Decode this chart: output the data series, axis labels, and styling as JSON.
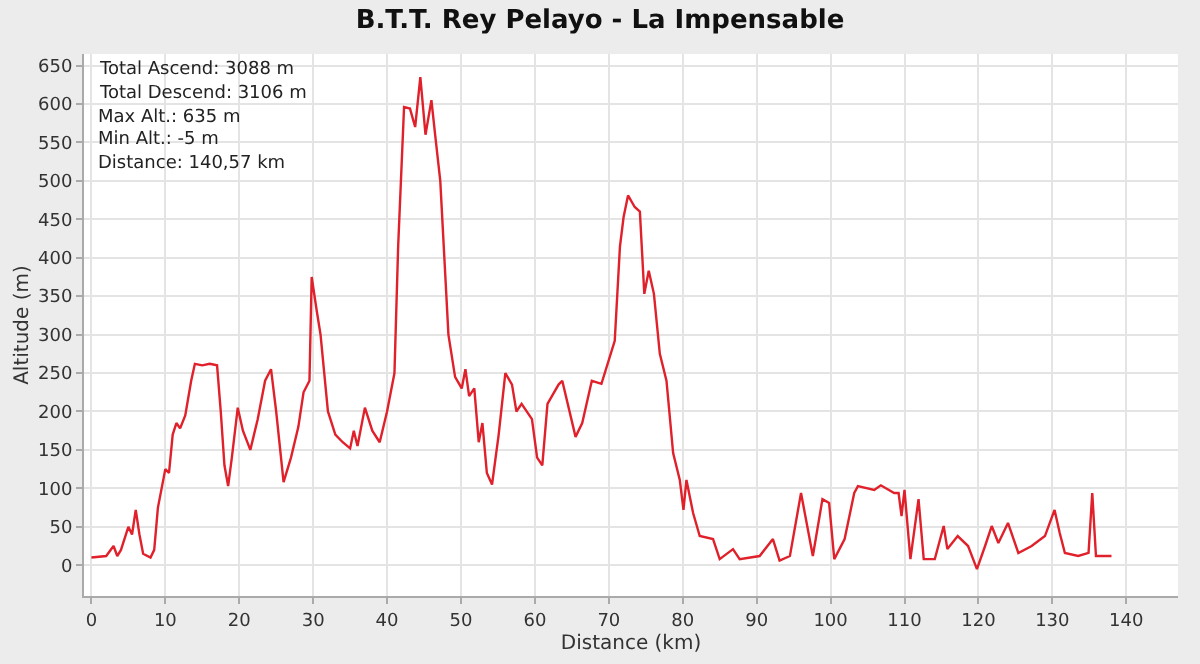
{
  "chart_data": {
    "type": "line",
    "title": "B.T.T. Rey Pelayo - La Impensable",
    "xlabel": "Distance (km)",
    "ylabel": "Altitude (m)",
    "annotations": [
      "Total Ascend: 3088 m",
      "Total Descend: 3106 m",
      "Max Alt.: 635 m",
      "Min Alt.: -5 m",
      "Distance: 140,57 km"
    ],
    "x": [
      0,
      2,
      3,
      3.5,
      4,
      5,
      5.5,
      6,
      6.5,
      7,
      8,
      8.5,
      9,
      9.5,
      10,
      10.5,
      11,
      11.5,
      12,
      12.7,
      13.5,
      14,
      15,
      16,
      17,
      17.5,
      18,
      18.5,
      19,
      19.8,
      20.5,
      21.5,
      22.5,
      23.5,
      24.3,
      25,
      26,
      27,
      28,
      28.7,
      29.5,
      29.8,
      30.5,
      31,
      31.5,
      32,
      33,
      34,
      35,
      35.5,
      36,
      37,
      38,
      39,
      40,
      41,
      41.5,
      42.3,
      43.1,
      43.8,
      44.5,
      45.2,
      46,
      46.5,
      47.2,
      48.3,
      49.2,
      50.1,
      50.6,
      51.1,
      51.8,
      52.4,
      52.9,
      53.5,
      54.2,
      55.1,
      56,
      56.9,
      57.5,
      58.2,
      59.6,
      60.3,
      61,
      61.7,
      63.2,
      63.7,
      65.5,
      66.4,
      67.7,
      69,
      70.8,
      71.5,
      72,
      72.6,
      73.5,
      74.2,
      74.8,
      75.4,
      76.1,
      76.9,
      77.8,
      78.7,
      79.6,
      80.1,
      80.5,
      81.4,
      82.3,
      84.1,
      85,
      86.8,
      87.7,
      90.4,
      92.2,
      93.1,
      94.5,
      96,
      97.6,
      98.9,
      99.8,
      100.5,
      101.9,
      103.2,
      103.7,
      105.9,
      106.8,
      108.6,
      109.2,
      109.6,
      110,
      110.8,
      111.9,
      112.6,
      114.1,
      115.3,
      115.8,
      117.2,
      118.6,
      119.8,
      120.9,
      121.8,
      122.7,
      124,
      125.4,
      127.2,
      129,
      130.3,
      131,
      131.7,
      133.5,
      134.9,
      135.4,
      135.9,
      138
    ],
    "values": [
      10,
      12,
      25,
      12,
      20,
      50,
      40,
      72,
      40,
      15,
      10,
      20,
      75,
      100,
      125,
      120,
      170,
      185,
      178,
      195,
      240,
      262,
      260,
      262,
      260,
      200,
      130,
      103,
      140,
      205,
      175,
      150,
      190,
      240,
      255,
      200,
      108,
      140,
      180,
      225,
      240,
      375,
      330,
      300,
      250,
      200,
      170,
      160,
      152,
      175,
      155,
      205,
      175,
      160,
      200,
      250,
      415,
      596,
      594,
      570,
      635,
      560,
      605,
      560,
      500,
      300,
      245,
      230,
      255,
      220,
      230,
      160,
      185,
      120,
      105,
      170,
      250,
      235,
      200,
      210,
      190,
      140,
      130,
      210,
      235,
      240,
      167,
      185,
      240,
      236,
      292,
      414,
      453,
      481,
      466,
      460,
      353,
      383,
      353,
      275,
      240,
      146,
      111,
      72,
      111,
      68,
      38,
      34,
      8,
      21,
      8,
      12,
      34,
      6,
      12,
      94,
      12,
      86,
      81,
      8,
      34,
      94,
      103,
      98,
      104,
      94,
      94,
      64,
      98,
      8,
      86,
      8,
      8,
      51,
      21,
      38,
      25,
      -5,
      25,
      51,
      29,
      55,
      16,
      25,
      38,
      72,
      42,
      16,
      12,
      16,
      94,
      12,
      12
    ],
    "color": "#e0202a",
    "xlim": [
      -1,
      147
    ],
    "ylim": [
      -40,
      665
    ],
    "xticks": [
      0,
      10,
      20,
      30,
      40,
      50,
      60,
      70,
      80,
      90,
      100,
      110,
      120,
      130,
      140
    ],
    "yticks": [
      0,
      50,
      100,
      150,
      200,
      250,
      300,
      350,
      400,
      450,
      500,
      550,
      600,
      650
    ],
    "grid": true,
    "marker": "none",
    "line_style": "solid"
  }
}
